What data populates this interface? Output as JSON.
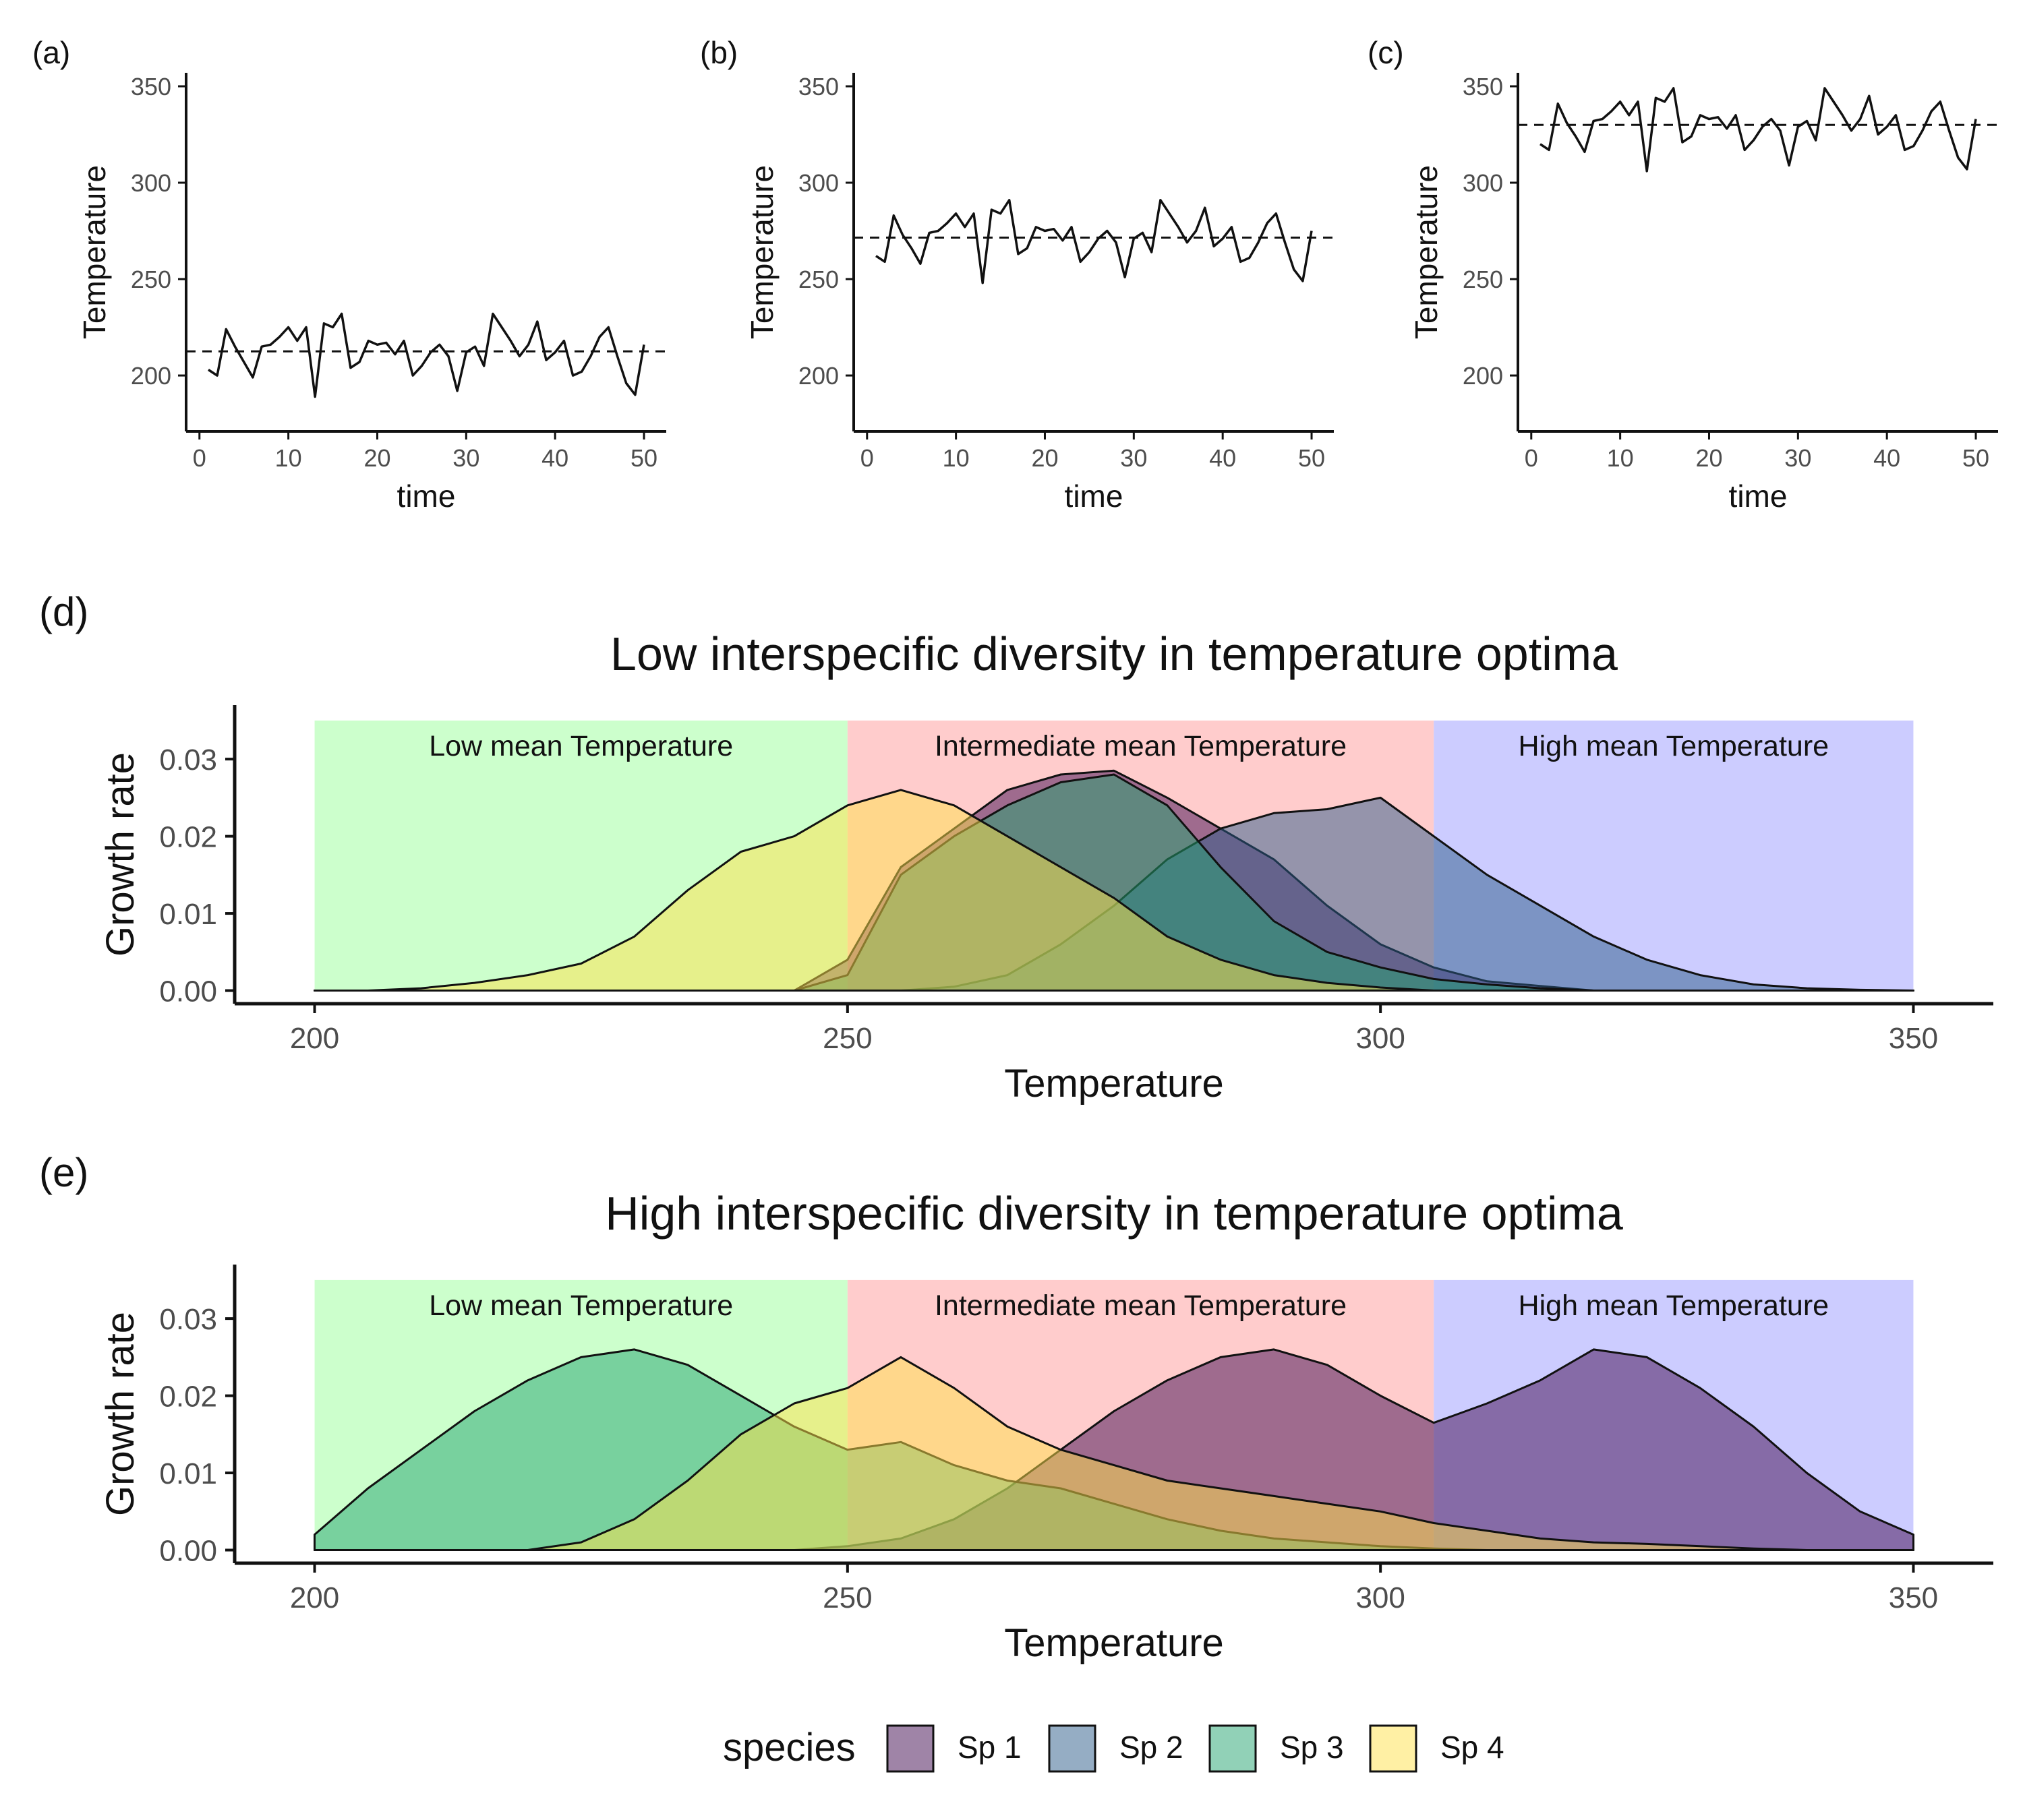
{
  "figure": {
    "panel_labels": [
      "(a)",
      "(b)",
      "(c)",
      "(d)",
      "(e)"
    ],
    "legend": {
      "title": "species",
      "entries": [
        {
          "label": "Sp 1",
          "color": "#3F0A4F"
        },
        {
          "label": "Sp 2",
          "color": "#2B5C8A"
        },
        {
          "label": "Sp 3",
          "color": "#23A470"
        },
        {
          "label": "Sp 4",
          "color": "#FFE24A"
        }
      ]
    }
  },
  "chart_data": [
    {
      "type": "line",
      "panel": "(a)",
      "xlabel": "time",
      "ylabel": "Temperature",
      "xticks": [
        0,
        10,
        20,
        30,
        40,
        50
      ],
      "yticks": [
        200,
        250,
        300,
        350
      ],
      "xlim": [
        -1.5,
        52.5
      ],
      "ylim": [
        171,
        357
      ],
      "grid": false,
      "mean_line": 212.5,
      "series": [
        {
          "x": [
            1,
            2,
            3,
            4,
            5,
            6,
            7,
            8,
            9,
            10,
            11,
            12,
            13,
            14,
            15,
            16,
            17,
            18,
            19,
            20,
            21,
            22,
            23,
            24,
            25,
            26,
            27,
            28,
            29,
            30,
            31,
            32,
            33,
            34,
            35,
            36,
            37,
            38,
            39,
            40,
            41,
            42,
            43,
            44,
            45,
            46,
            47,
            48,
            49,
            50
          ],
          "values": [
            203,
            200,
            224,
            215,
            207,
            199,
            215,
            216,
            220,
            225,
            218,
            225,
            189,
            227,
            225,
            232,
            204,
            207,
            218,
            216,
            217,
            211,
            218,
            200,
            205,
            212,
            216,
            210,
            192,
            212,
            215,
            205,
            232,
            225,
            218,
            210,
            216,
            228,
            208,
            212,
            218,
            200,
            202,
            210,
            220,
            225,
            210,
            196,
            190,
            216
          ]
        }
      ]
    },
    {
      "type": "line",
      "panel": "(b)",
      "xlabel": "time",
      "ylabel": "Temperature",
      "xticks": [
        0,
        10,
        20,
        30,
        40,
        50
      ],
      "yticks": [
        200,
        250,
        300,
        350
      ],
      "xlim": [
        -1.5,
        52.5
      ],
      "ylim": [
        171,
        357
      ],
      "grid": false,
      "mean_line": 271.5,
      "series": [
        {
          "x": [
            1,
            2,
            3,
            4,
            5,
            6,
            7,
            8,
            9,
            10,
            11,
            12,
            13,
            14,
            15,
            16,
            17,
            18,
            19,
            20,
            21,
            22,
            23,
            24,
            25,
            26,
            27,
            28,
            29,
            30,
            31,
            32,
            33,
            34,
            35,
            36,
            37,
            38,
            39,
            40,
            41,
            42,
            43,
            44,
            45,
            46,
            47,
            48,
            49,
            50
          ],
          "values": [
            262,
            259,
            283,
            273,
            266,
            258,
            274,
            275,
            279,
            284,
            277,
            284,
            248,
            286,
            284,
            291,
            263,
            266,
            277,
            275,
            276,
            270,
            277,
            259,
            264,
            271,
            275,
            269,
            251,
            271,
            274,
            264,
            291,
            284,
            277,
            269,
            275,
            287,
            267,
            271,
            277,
            259,
            261,
            269,
            279,
            284,
            269,
            255,
            249,
            275
          ]
        }
      ]
    },
    {
      "type": "line",
      "panel": "(c)",
      "xlabel": "time",
      "ylabel": "Temperature",
      "xticks": [
        0,
        10,
        20,
        30,
        40,
        50
      ],
      "yticks": [
        200,
        250,
        300,
        350
      ],
      "xlim": [
        -1.5,
        52.5
      ],
      "ylim": [
        171,
        357
      ],
      "grid": false,
      "mean_line": 330,
      "series": [
        {
          "x": [
            1,
            2,
            3,
            4,
            5,
            6,
            7,
            8,
            9,
            10,
            11,
            12,
            13,
            14,
            15,
            16,
            17,
            18,
            19,
            20,
            21,
            22,
            23,
            24,
            25,
            26,
            27,
            28,
            29,
            30,
            31,
            32,
            33,
            34,
            35,
            36,
            37,
            38,
            39,
            40,
            41,
            42,
            43,
            44,
            45,
            46,
            47,
            48,
            49,
            50
          ],
          "values": [
            320,
            317,
            341,
            331,
            324,
            316,
            332,
            333,
            337,
            342,
            335,
            342,
            306,
            344,
            342,
            349,
            321,
            324,
            335,
            333,
            334,
            328,
            335,
            317,
            322,
            329,
            333,
            327,
            309,
            329,
            332,
            322,
            349,
            342,
            335,
            327,
            333,
            345,
            325,
            329,
            335,
            317,
            319,
            327,
            337,
            342,
            327,
            313,
            307,
            333
          ]
        }
      ]
    },
    {
      "type": "area",
      "panel": "(d)",
      "title": "Low interspecific diversity in temperature optima",
      "xlabel": "Temperature",
      "ylabel": "Growth rate",
      "xticks": [
        200,
        250,
        300,
        350
      ],
      "yticks": [
        "0.00",
        "0.01",
        "0.02",
        "0.03"
      ],
      "xlim": [
        192.5,
        357.5
      ],
      "ylim": [
        -0.0017,
        0.037
      ],
      "grid": false,
      "regions": [
        {
          "label": "Low mean Temperature",
          "x0": 200,
          "x1": 250,
          "color": "#CCFFCC"
        },
        {
          "label": "Intermediate mean Temperature",
          "x0": 250,
          "x1": 305,
          "color": "#FFCCCC"
        },
        {
          "label": "High mean Temperature",
          "x0": 305,
          "x1": 350,
          "color": "#CCCCFF"
        }
      ],
      "region_top": 0.035,
      "x": [
        200,
        205,
        210,
        215,
        220,
        225,
        230,
        235,
        240,
        245,
        250,
        255,
        260,
        265,
        270,
        275,
        280,
        285,
        290,
        295,
        300,
        305,
        310,
        315,
        320,
        325,
        330,
        335,
        340,
        345,
        350
      ],
      "series": [
        {
          "name": "Sp 1",
          "values": [
            0,
            0,
            0,
            0,
            0,
            0,
            0,
            0,
            0,
            0,
            0.004,
            0.016,
            0.021,
            0.026,
            0.028,
            0.0285,
            0.025,
            0.021,
            0.017,
            0.011,
            0.006,
            0.003,
            0.0012,
            0.0006,
            0,
            0,
            0,
            0,
            0,
            0,
            0
          ]
        },
        {
          "name": "Sp 2",
          "values": [
            0,
            0,
            0,
            0,
            0,
            0,
            0,
            0,
            0,
            0,
            0,
            0,
            0.0005,
            0.002,
            0.006,
            0.011,
            0.017,
            0.021,
            0.023,
            0.0235,
            0.025,
            0.02,
            0.015,
            0.011,
            0.007,
            0.004,
            0.002,
            0.0008,
            0.0003,
            0.0001,
            0
          ]
        },
        {
          "name": "Sp 3",
          "values": [
            0,
            0,
            0,
            0,
            0,
            0,
            0,
            0,
            0,
            0,
            0.002,
            0.015,
            0.02,
            0.024,
            0.027,
            0.028,
            0.024,
            0.016,
            0.009,
            0.005,
            0.003,
            0.0015,
            0.0008,
            0.0003,
            0,
            0,
            0,
            0,
            0,
            0,
            0
          ]
        },
        {
          "name": "Sp 4",
          "values": [
            0,
            0,
            0.0003,
            0.001,
            0.002,
            0.0035,
            0.007,
            0.013,
            0.018,
            0.02,
            0.024,
            0.026,
            0.024,
            0.02,
            0.016,
            0.012,
            0.007,
            0.004,
            0.002,
            0.001,
            0.0004,
            0,
            0,
            0,
            0,
            0,
            0,
            0,
            0,
            0,
            0
          ]
        }
      ]
    },
    {
      "type": "area",
      "panel": "(e)",
      "title": "High interspecific diversity in temperature optima",
      "xlabel": "Temperature",
      "ylabel": "Growth rate",
      "xticks": [
        200,
        250,
        300,
        350
      ],
      "yticks": [
        "0.00",
        "0.01",
        "0.02",
        "0.03"
      ],
      "xlim": [
        192.5,
        357.5
      ],
      "ylim": [
        -0.0017,
        0.037
      ],
      "grid": false,
      "regions": [
        {
          "label": "Low mean Temperature",
          "x0": 200,
          "x1": 250,
          "color": "#CCFFCC"
        },
        {
          "label": "Intermediate mean Temperature",
          "x0": 250,
          "x1": 305,
          "color": "#FFCCCC"
        },
        {
          "label": "High mean Temperature",
          "x0": 305,
          "x1": 350,
          "color": "#CCCCFF"
        }
      ],
      "region_top": 0.035,
      "x": [
        200,
        205,
        210,
        215,
        220,
        225,
        230,
        235,
        240,
        245,
        250,
        255,
        260,
        265,
        270,
        275,
        280,
        285,
        290,
        295,
        300,
        305,
        310,
        315,
        320,
        325,
        330,
        335,
        340,
        345,
        350
      ],
      "series": [
        {
          "name": "Sp 1",
          "values": [
            0,
            0,
            0,
            0,
            0,
            0,
            0,
            0,
            0,
            0,
            0.0005,
            0.0015,
            0.004,
            0.008,
            0.013,
            0.018,
            0.022,
            0.025,
            0.026,
            0.024,
            0.02,
            0.0165,
            0.019,
            0.022,
            0.026,
            0.025,
            0.021,
            0.016,
            0.01,
            0.005,
            0.002
          ]
        },
        {
          "name": "Sp 2",
          "values": [
            0,
            0,
            0,
            0,
            0,
            0,
            0,
            0,
            0,
            0,
            0,
            0,
            0,
            0,
            0,
            0,
            0,
            0,
            0,
            0,
            0,
            0,
            0,
            0,
            0,
            0,
            0,
            0,
            0,
            0,
            0
          ]
        },
        {
          "name": "Sp 3",
          "values": [
            0.002,
            0.008,
            0.013,
            0.018,
            0.022,
            0.025,
            0.026,
            0.024,
            0.02,
            0.016,
            0.013,
            0.014,
            0.011,
            0.009,
            0.008,
            0.006,
            0.004,
            0.0025,
            0.0015,
            0.001,
            0.0005,
            0.0002,
            0,
            0,
            0,
            0,
            0,
            0,
            0,
            0,
            0
          ]
        },
        {
          "name": "Sp 4",
          "values": [
            0,
            0,
            0,
            0,
            0,
            0.001,
            0.004,
            0.009,
            0.015,
            0.019,
            0.021,
            0.025,
            0.021,
            0.016,
            0.013,
            0.011,
            0.009,
            0.008,
            0.007,
            0.006,
            0.005,
            0.0035,
            0.0025,
            0.0015,
            0.001,
            0.0008,
            0.0005,
            0.0002,
            0,
            0,
            0
          ]
        }
      ]
    }
  ]
}
